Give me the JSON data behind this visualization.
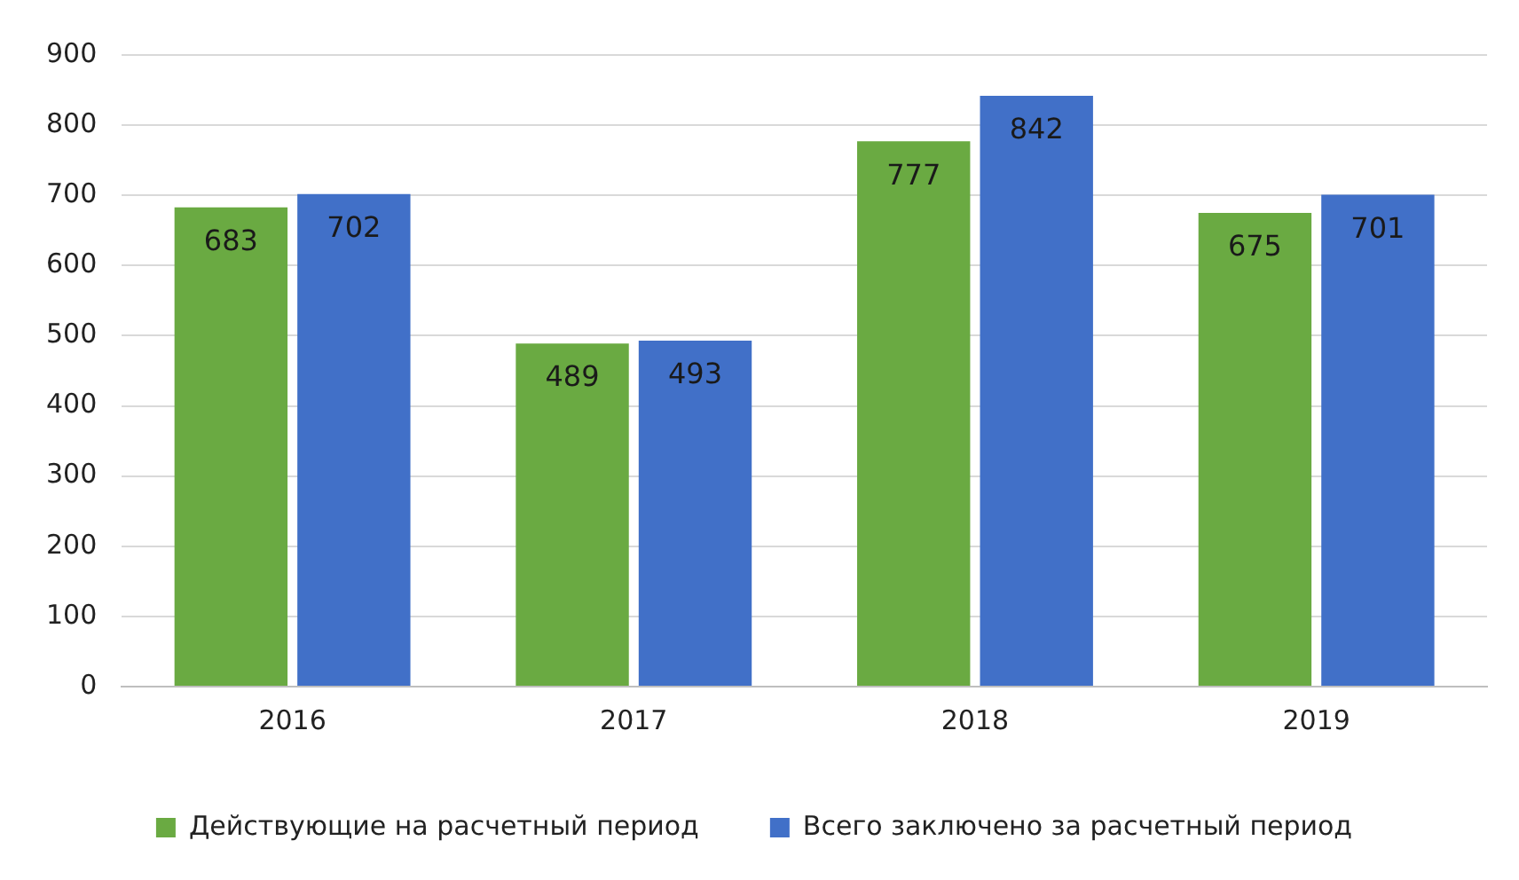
{
  "chart_data": {
    "type": "bar",
    "categories": [
      "2016",
      "2017",
      "2018",
      "2019"
    ],
    "series": [
      {
        "name": "Действующие на расчетный период",
        "color": "#6aaa42",
        "values": [
          683,
          489,
          777,
          675
        ]
      },
      {
        "name": "Всего заключено за расчетный период",
        "color": "#4170c8",
        "values": [
          702,
          493,
          842,
          701
        ]
      }
    ],
    "ylim": [
      0,
      900
    ],
    "yticks": [
      0,
      100,
      200,
      300,
      400,
      500,
      600,
      700,
      800,
      900
    ],
    "grid": "y",
    "legend": "bottom",
    "data_labels": true
  }
}
